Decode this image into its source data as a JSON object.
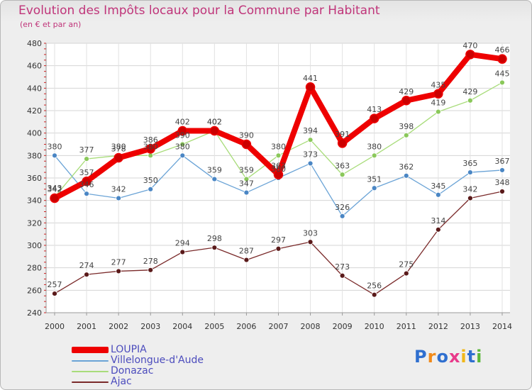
{
  "chart_data": {
    "type": "line",
    "title": "Evolution des Impôts locaux pour la Commune par Habitant",
    "subtitle": "(en € et par an)",
    "xlabel": "",
    "ylabel": "",
    "ylim": [
      240,
      480
    ],
    "yticks": [
      "240",
      "260",
      "280",
      "300",
      "320",
      "340",
      "360",
      "380",
      "400",
      "420",
      "440",
      "460",
      "480"
    ],
    "categories": [
      "2000",
      "2001",
      "2002",
      "2003",
      "2004",
      "2005",
      "2006",
      "2007",
      "2008",
      "2009",
      "2010",
      "2011",
      "2012",
      "2013",
      "2014"
    ],
    "series": [
      {
        "name": "Ajac",
        "color": "#7a2a2a",
        "marker": "#5a1a1a",
        "values": [
          257,
          274,
          277,
          278,
          294,
          298,
          287,
          297,
          303,
          273,
          256,
          275,
          314,
          342,
          348
        ],
        "labels": [
          "257",
          "274",
          "277",
          "278",
          "294",
          "298",
          "287",
          "297",
          "303",
          "273",
          "256",
          "275",
          "314",
          "342",
          "348"
        ]
      },
      {
        "name": "Villelongue-d'Aude",
        "color": "#6aa3d6",
        "marker": "#4a86c4",
        "values": [
          380,
          346,
          342,
          350,
          380,
          359,
          347,
          360,
          373,
          326,
          351,
          362,
          345,
          365,
          367
        ],
        "labels": [
          "380",
          "346",
          "342",
          "350",
          "380",
          "359",
          "347",
          "360",
          "373",
          "326",
          "351",
          "362",
          "345",
          "365",
          "367"
        ]
      },
      {
        "name": "Donazac",
        "color": "#a8dc7a",
        "marker": "#8ac85a",
        "values": [
          343,
          377,
          380,
          380,
          390,
          402,
          359,
          380,
          394,
          363,
          380,
          398,
          419,
          429,
          445
        ],
        "labels": [
          "343",
          "377",
          "380",
          "380",
          "390",
          "402",
          "359",
          "380",
          "394",
          "363",
          "380",
          "398",
          "419",
          "429",
          "445"
        ]
      },
      {
        "name": "LOUPIA",
        "color": "#ee0000",
        "marker": "#cc0000",
        "values": [
          342,
          357,
          378,
          386,
          402,
          402,
          390,
          363,
          441,
          391,
          413,
          429,
          435,
          470,
          466
        ],
        "labels": [
          "342",
          "357",
          "378",
          "386",
          "402",
          "402",
          "390",
          "363",
          "441",
          "391",
          "413",
          "429",
          "435",
          "470",
          "466"
        ]
      }
    ],
    "legend": [
      {
        "name": "LOUPIA",
        "color": "#ee0000"
      },
      {
        "name": "Villelongue-d'Aude",
        "color": "#6aa3d6"
      },
      {
        "name": "Donazac",
        "color": "#a8dc7a"
      },
      {
        "name": "Ajac",
        "color": "#7a2a2a"
      }
    ]
  },
  "logo": {
    "text": "Proxiti",
    "letters": [
      {
        "ch": "P",
        "color": "#2f6fcf"
      },
      {
        "ch": "r",
        "color": "#f08a1a"
      },
      {
        "ch": "o",
        "color": "#2f6fcf"
      },
      {
        "ch": "x",
        "color": "#e83a8a"
      },
      {
        "ch": "i",
        "color": "#f0b81a"
      },
      {
        "ch": "t",
        "color": "#2f6fcf"
      },
      {
        "ch": "i",
        "color": "#5cb83a"
      }
    ]
  }
}
